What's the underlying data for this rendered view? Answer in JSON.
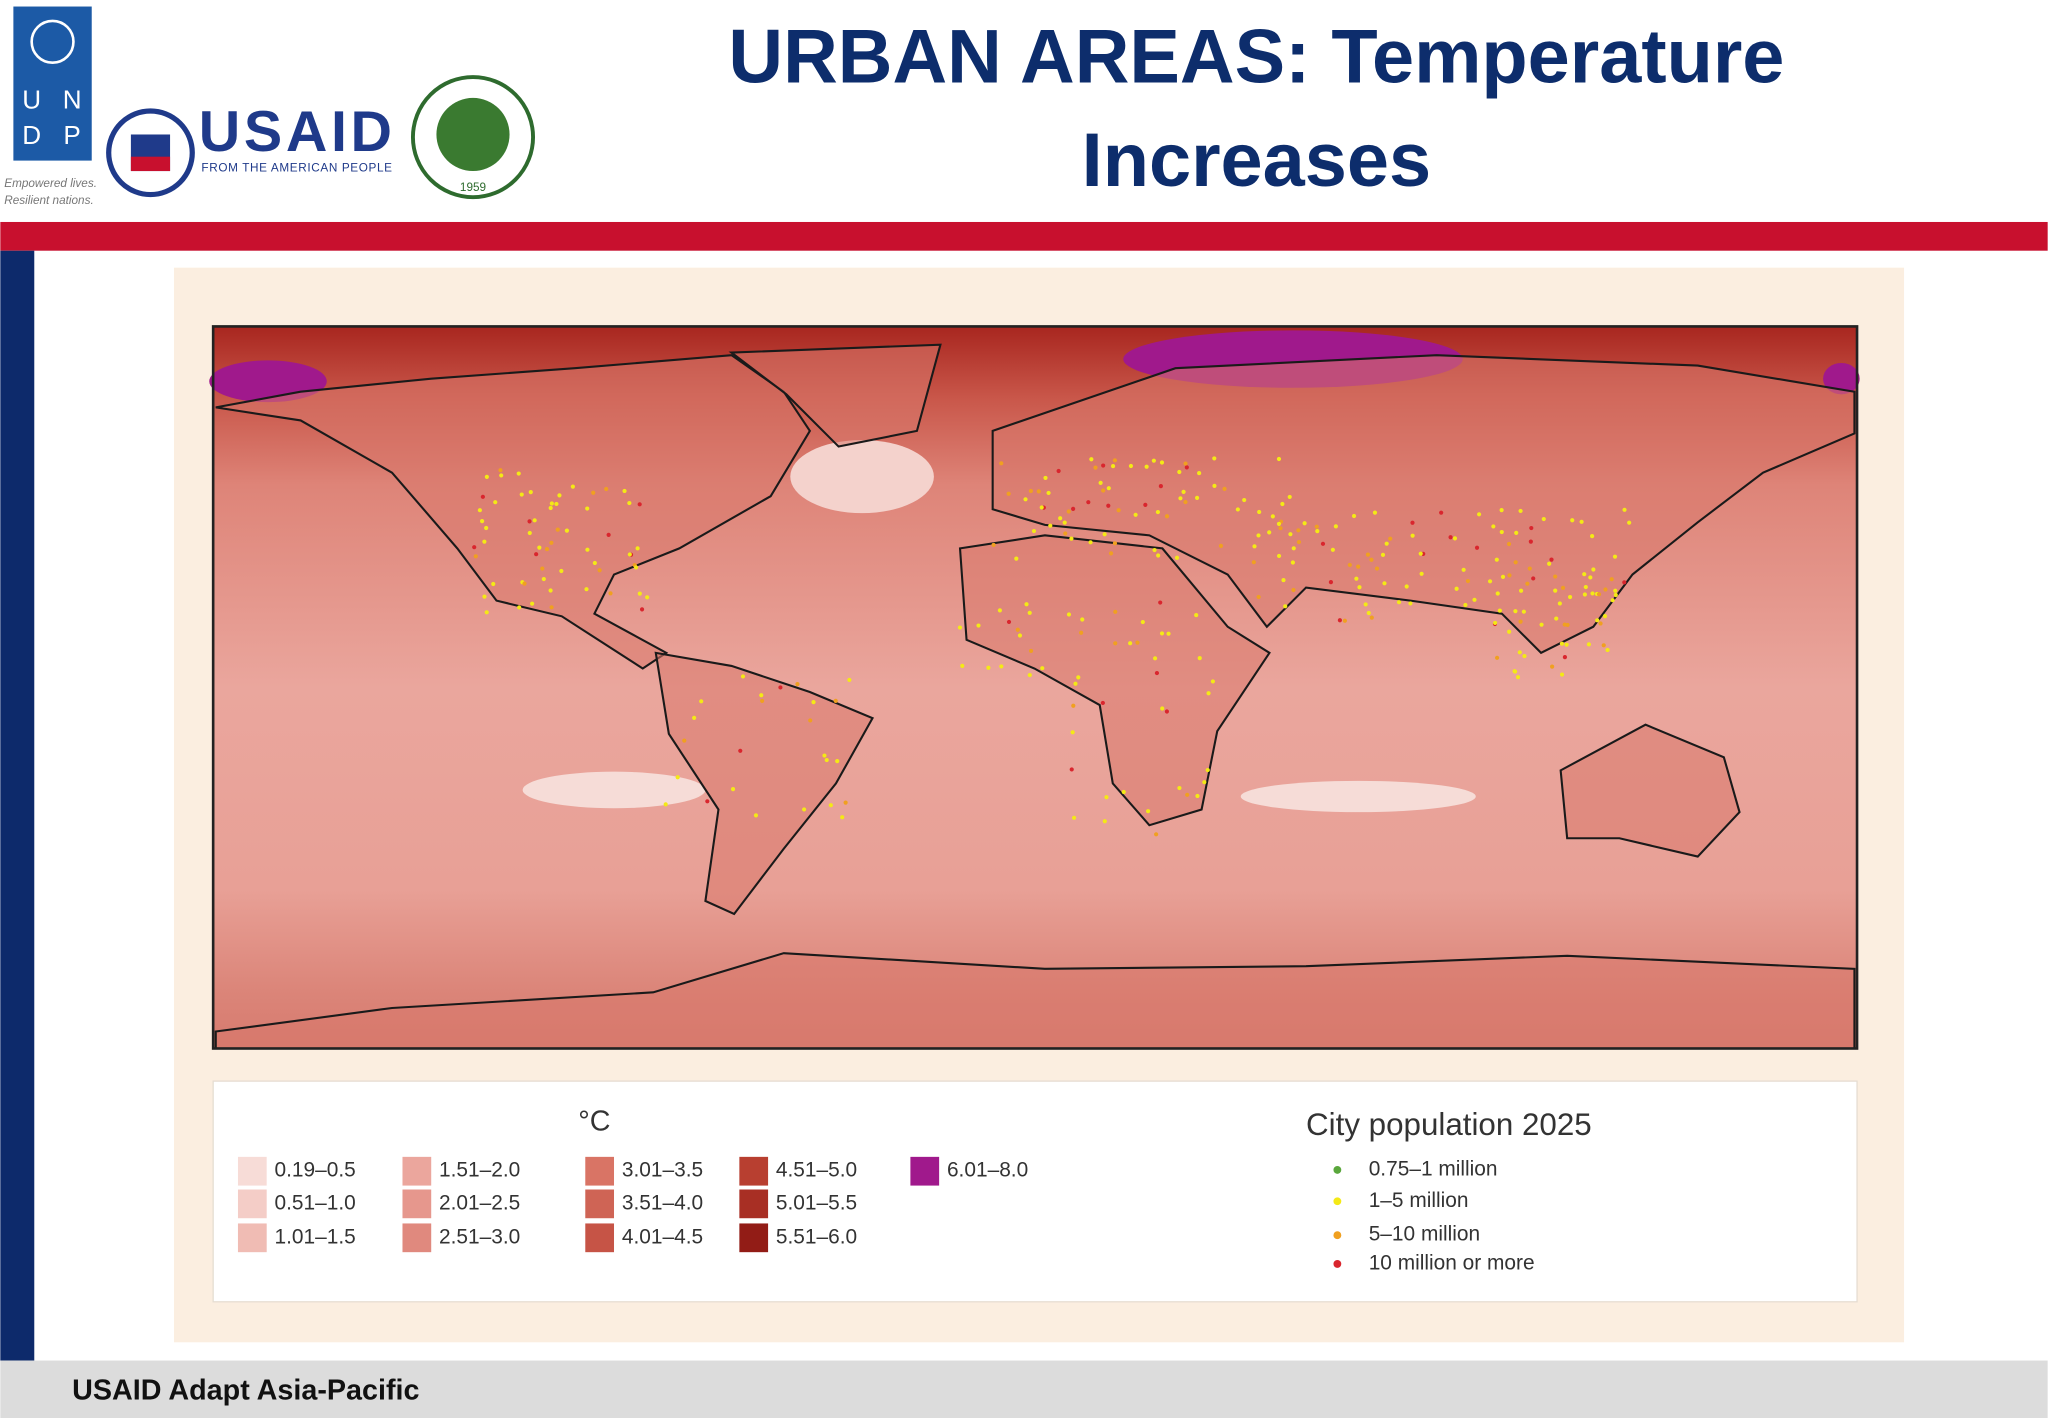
{
  "header": {
    "title_lines": [
      "URBAN AREAS: Temperature",
      "Increases"
    ],
    "logos": {
      "undp_letters": [
        "U",
        "N",
        "D",
        "P"
      ],
      "undp_tagline": [
        "Empowered lives.",
        "Resilient nations."
      ],
      "usaid": "USAID",
      "usaid_tagline": "FROM THE AMERICAN PEOPLE",
      "ait_year": "1959"
    }
  },
  "legend": {
    "unit": "°C",
    "classes": [
      {
        "label": "0.19–0.5",
        "color": "#f7dcd7"
      },
      {
        "label": "0.51–1.0",
        "color": "#f4cdc7"
      },
      {
        "label": "1.01–1.5",
        "color": "#f0bcb4"
      },
      {
        "label": "1.51–2.0",
        "color": "#eba69d"
      },
      {
        "label": "2.01–2.5",
        "color": "#e6978d"
      },
      {
        "label": "2.51–3.0",
        "color": "#e0897e"
      },
      {
        "label": "3.01–3.5",
        "color": "#d97465"
      },
      {
        "label": "3.51–4.0",
        "color": "#cf6455"
      },
      {
        "label": "4.01–4.5",
        "color": "#c65446"
      },
      {
        "label": "4.51–5.0",
        "color": "#b83f30"
      },
      {
        "label": "5.01–5.5",
        "color": "#a82f24"
      },
      {
        "label": "5.51–6.0",
        "color": "#921c16"
      },
      {
        "label": "6.01–8.0",
        "color": "#a0198c"
      }
    ],
    "population_title": "City population 2025",
    "population_classes": [
      {
        "label": "0.75–1 million",
        "color": "#5aa73c"
      },
      {
        "label": "1–5 million",
        "color": "#f4e916"
      },
      {
        "label": "5–10 million",
        "color": "#f0a020"
      },
      {
        "label": "10 million or more",
        "color": "#d9262e"
      }
    ]
  },
  "footer": {
    "text": "USAID Adapt Asia-Pacific"
  }
}
